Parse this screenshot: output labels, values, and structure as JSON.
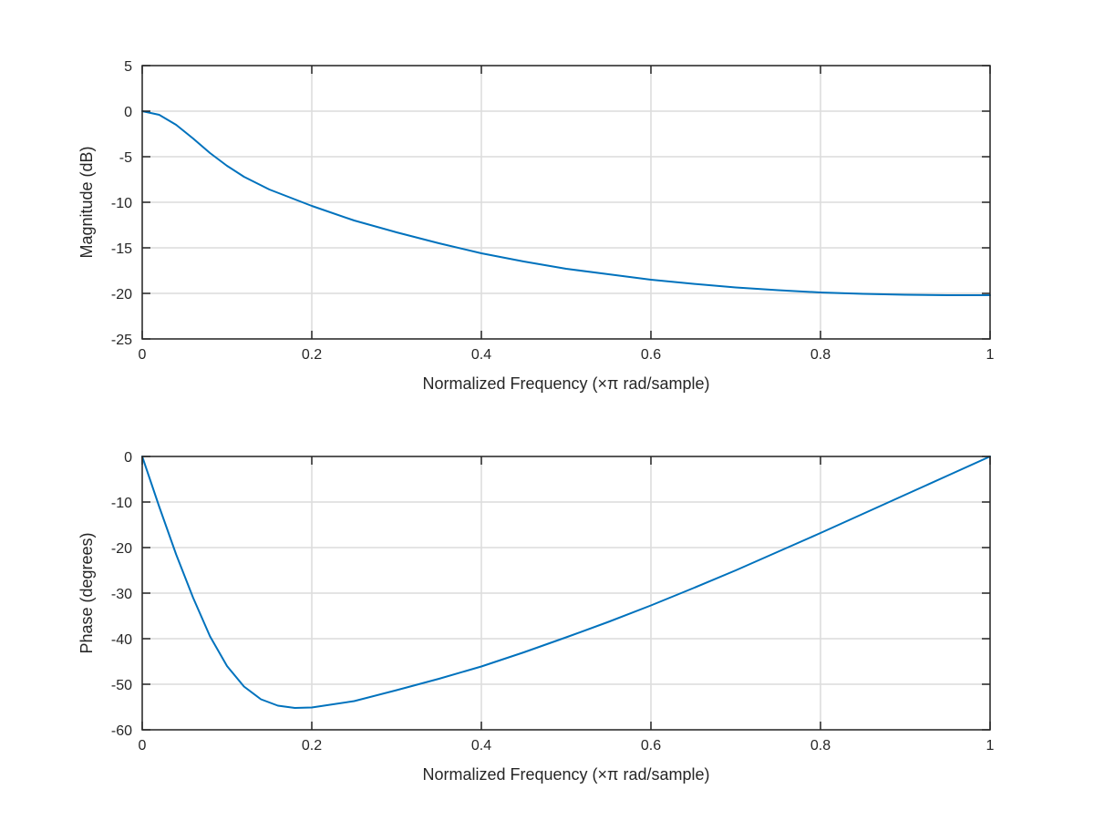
{
  "colors": {
    "series": "#0072bd",
    "axes": "#262626",
    "grid": "#dcdcdc",
    "background": "#ffffff"
  },
  "chart_data": [
    {
      "type": "line",
      "title": "",
      "xlabel": "Normalized Frequency (×π rad/sample)",
      "ylabel": "Magnitude (dB)",
      "xlim": [
        0,
        1
      ],
      "ylim": [
        -25,
        5
      ],
      "grid": true,
      "xticks": [
        0,
        0.2,
        0.4,
        0.6,
        0.8,
        1
      ],
      "xtick_labels": [
        "0",
        "0.2",
        "0.4",
        "0.6",
        "0.8",
        "1"
      ],
      "yticks": [
        -25,
        -20,
        -15,
        -10,
        -5,
        0,
        5
      ],
      "ytick_labels": [
        "-25",
        "-20",
        "-15",
        "-10",
        "-5",
        "0",
        "5"
      ],
      "series": [
        {
          "x": [
            0,
            0.02,
            0.04,
            0.06,
            0.08,
            0.1,
            0.12,
            0.15,
            0.2,
            0.25,
            0.3,
            0.35,
            0.4,
            0.45,
            0.5,
            0.55,
            0.6,
            0.65,
            0.7,
            0.75,
            0.8,
            0.85,
            0.9,
            0.95,
            1
          ],
          "y": [
            0,
            -0.4,
            -1.5,
            -3.0,
            -4.6,
            -6.0,
            -7.2,
            -8.6,
            -10.4,
            -12.0,
            -13.3,
            -14.5,
            -15.6,
            -16.5,
            -17.3,
            -17.9,
            -18.5,
            -18.95,
            -19.35,
            -19.65,
            -19.9,
            -20.05,
            -20.15,
            -20.2,
            -20.2
          ]
        }
      ]
    },
    {
      "type": "line",
      "title": "",
      "xlabel": "Normalized Frequency (×π rad/sample)",
      "ylabel": "Phase (degrees)",
      "xlim": [
        0,
        1
      ],
      "ylim": [
        -60,
        0
      ],
      "grid": true,
      "xticks": [
        0,
        0.2,
        0.4,
        0.6,
        0.8,
        1
      ],
      "xtick_labels": [
        "0",
        "0.2",
        "0.4",
        "0.6",
        "0.8",
        "1"
      ],
      "yticks": [
        -60,
        -50,
        -40,
        -30,
        -20,
        -10,
        0
      ],
      "ytick_labels": [
        "-60",
        "-50",
        "-40",
        "-30",
        "-20",
        "-10",
        "0"
      ],
      "series": [
        {
          "x": [
            0,
            0.01,
            0.02,
            0.04,
            0.06,
            0.08,
            0.1,
            0.12,
            0.14,
            0.16,
            0.18,
            0.2,
            0.25,
            0.3,
            0.35,
            0.4,
            0.45,
            0.5,
            0.55,
            0.6,
            0.65,
            0.7,
            0.75,
            0.8,
            0.85,
            0.9,
            0.95,
            1
          ],
          "y": [
            0,
            -5.5,
            -11,
            -21.5,
            -31,
            -39.5,
            -46,
            -50.5,
            -53.3,
            -54.7,
            -55.2,
            -55.1,
            -53.7,
            -51.3,
            -48.8,
            -46.1,
            -43.0,
            -39.7,
            -36.3,
            -32.7,
            -28.9,
            -25.0,
            -20.9,
            -16.8,
            -12.6,
            -8.4,
            -4.2,
            0
          ]
        }
      ]
    }
  ]
}
